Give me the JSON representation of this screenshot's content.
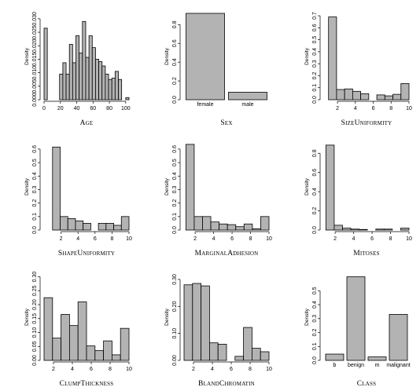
{
  "chart_data": [
    {
      "type": "bar",
      "title": "Age",
      "ylabel": "Density",
      "x_ticks": [
        0,
        20,
        40,
        60,
        80,
        100
      ],
      "y_ticks": [
        "0.000",
        "0.005",
        "0.010",
        "0.015",
        "0.020",
        "0.025",
        "0.030"
      ],
      "xlim": [
        0,
        104
      ],
      "ylim": [
        0,
        0.032
      ],
      "bins": [
        {
          "x0": 0,
          "x1": 4,
          "value": 0.0265
        },
        {
          "x0": 19,
          "x1": 23,
          "value": 0.0095
        },
        {
          "x0": 23,
          "x1": 27,
          "value": 0.0137
        },
        {
          "x0": 27,
          "x1": 31,
          "value": 0.0095
        },
        {
          "x0": 31,
          "x1": 35,
          "value": 0.0205
        },
        {
          "x0": 35,
          "x1": 39,
          "value": 0.0137
        },
        {
          "x0": 39,
          "x1": 43,
          "value": 0.0237
        },
        {
          "x0": 43,
          "x1": 47,
          "value": 0.0173
        },
        {
          "x0": 47,
          "x1": 51,
          "value": 0.029
        },
        {
          "x0": 51,
          "x1": 55,
          "value": 0.0157
        },
        {
          "x0": 55,
          "x1": 59,
          "value": 0.0237
        },
        {
          "x0": 59,
          "x1": 63,
          "value": 0.0193
        },
        {
          "x0": 63,
          "x1": 67,
          "value": 0.015
        },
        {
          "x0": 67,
          "x1": 71,
          "value": 0.0141
        },
        {
          "x0": 71,
          "x1": 75,
          "value": 0.0125
        },
        {
          "x0": 75,
          "x1": 79,
          "value": 0.0095
        },
        {
          "x0": 79,
          "x1": 83,
          "value": 0.0075
        },
        {
          "x0": 83,
          "x1": 87,
          "value": 0.008
        },
        {
          "x0": 87,
          "x1": 91,
          "value": 0.0105
        },
        {
          "x0": 91,
          "x1": 95,
          "value": 0.0075
        },
        {
          "x0": 100,
          "x1": 104,
          "value": 0.0008
        }
      ]
    },
    {
      "type": "bar",
      "title": "Sex",
      "ylabel": "Density",
      "categories": [
        "female",
        "male"
      ],
      "values": [
        0.92,
        0.08
      ],
      "y_ticks": [
        "0.0",
        "0.2",
        "0.4",
        "0.6",
        "0.8"
      ],
      "ylim": [
        0,
        0.92
      ]
    },
    {
      "type": "bar",
      "title": "SizeUniformity",
      "ylabel": "Density",
      "x_ticks": [
        2,
        4,
        6,
        8,
        10
      ],
      "y_ticks": [
        "0.0",
        "0.1",
        "0.2",
        "0.3",
        "0.4",
        "0.5",
        "0.6",
        "0.7"
      ],
      "xlim": [
        0.5,
        10
      ],
      "ylim": [
        0,
        0.72
      ],
      "bins": [
        {
          "x0": 1,
          "x1": 1.9,
          "value": 0.69
        },
        {
          "x0": 1.9,
          "x1": 2.8,
          "value": 0.085
        },
        {
          "x0": 2.8,
          "x1": 3.7,
          "value": 0.09
        },
        {
          "x0": 3.7,
          "x1": 4.6,
          "value": 0.07
        },
        {
          "x0": 4.6,
          "x1": 5.5,
          "value": 0.05
        },
        {
          "x0": 5.5,
          "x1": 6.4,
          "value": 0.0
        },
        {
          "x0": 6.4,
          "x1": 7.3,
          "value": 0.04
        },
        {
          "x0": 7.3,
          "x1": 8.2,
          "value": 0.032
        },
        {
          "x0": 8.2,
          "x1": 9.1,
          "value": 0.045
        },
        {
          "x0": 9.1,
          "x1": 10,
          "value": 0.135
        }
      ]
    },
    {
      "type": "bar",
      "title": "ShapeUniformity",
      "ylabel": "Density",
      "x_ticks": [
        2,
        4,
        6,
        8,
        10
      ],
      "y_ticks": [
        "0.0",
        "0.1",
        "0.2",
        "0.3",
        "0.4",
        "0.5",
        "0.6"
      ],
      "xlim": [
        0,
        10
      ],
      "ylim": [
        0,
        0.64
      ],
      "bins": [
        {
          "x0": 1,
          "x1": 1.9,
          "value": 0.615
        },
        {
          "x0": 1.9,
          "x1": 2.8,
          "value": 0.1
        },
        {
          "x0": 2.8,
          "x1": 3.7,
          "value": 0.085
        },
        {
          "x0": 3.7,
          "x1": 4.6,
          "value": 0.068
        },
        {
          "x0": 4.6,
          "x1": 5.5,
          "value": 0.05
        },
        {
          "x0": 5.5,
          "x1": 6.4,
          "value": 0.0
        },
        {
          "x0": 6.4,
          "x1": 7.3,
          "value": 0.05
        },
        {
          "x0": 7.3,
          "x1": 8.2,
          "value": 0.05
        },
        {
          "x0": 8.2,
          "x1": 9.1,
          "value": 0.035
        },
        {
          "x0": 9.1,
          "x1": 10,
          "value": 0.1
        }
      ]
    },
    {
      "type": "bar",
      "title": "MarginalAdhesion",
      "ylabel": "Density",
      "x_ticks": [
        2,
        4,
        6,
        8,
        10
      ],
      "y_ticks": [
        "0.0",
        "0.1",
        "0.2",
        "0.3",
        "0.4",
        "0.5",
        "0.6"
      ],
      "xlim": [
        0.8,
        10
      ],
      "ylim": [
        0,
        0.64
      ],
      "bins": [
        {
          "x0": 1,
          "x1": 1.9,
          "value": 0.635
        },
        {
          "x0": 1.9,
          "x1": 2.8,
          "value": 0.1
        },
        {
          "x0": 2.8,
          "x1": 3.7,
          "value": 0.1
        },
        {
          "x0": 3.7,
          "x1": 4.6,
          "value": 0.06
        },
        {
          "x0": 4.6,
          "x1": 5.5,
          "value": 0.045
        },
        {
          "x0": 5.5,
          "x1": 6.4,
          "value": 0.04
        },
        {
          "x0": 6.4,
          "x1": 7.3,
          "value": 0.025
        },
        {
          "x0": 7.3,
          "x1": 8.2,
          "value": 0.045
        },
        {
          "x0": 8.2,
          "x1": 9.1,
          "value": 0.01
        },
        {
          "x0": 9.1,
          "x1": 10,
          "value": 0.1
        }
      ]
    },
    {
      "type": "bar",
      "title": "Mitoses",
      "ylabel": "Density",
      "x_ticks": [
        2,
        4,
        6,
        8,
        10
      ],
      "y_ticks": [
        "0.0",
        "0.2",
        "0.4",
        "0.6",
        "0.8"
      ],
      "xlim": [
        0.8,
        10
      ],
      "ylim": [
        0,
        0.9
      ],
      "bins": [
        {
          "x0": 1,
          "x1": 1.9,
          "value": 0.885
        },
        {
          "x0": 1.9,
          "x1": 2.8,
          "value": 0.05
        },
        {
          "x0": 2.8,
          "x1": 3.7,
          "value": 0.02
        },
        {
          "x0": 3.7,
          "x1": 4.6,
          "value": 0.01
        },
        {
          "x0": 4.6,
          "x1": 5.5,
          "value": 0.006
        },
        {
          "x0": 5.5,
          "x1": 6.4,
          "value": 0.0
        },
        {
          "x0": 6.4,
          "x1": 7.3,
          "value": 0.01
        },
        {
          "x0": 7.3,
          "x1": 8.2,
          "value": 0.01
        },
        {
          "x0": 8.2,
          "x1": 9.1,
          "value": 0.0
        },
        {
          "x0": 9.1,
          "x1": 10,
          "value": 0.02
        }
      ]
    },
    {
      "type": "bar",
      "title": "ClumpThickness",
      "ylabel": "Density",
      "x_ticks": [
        2,
        4,
        6,
        8,
        10
      ],
      "y_ticks": [
        "0.00",
        "0.05",
        "0.10",
        "0.15",
        "0.20",
        "0.25",
        "0.30"
      ],
      "xlim": [
        1,
        10
      ],
      "ylim": [
        0,
        0.31
      ],
      "bins": [
        {
          "x0": 1,
          "x1": 1.9,
          "value": 0.225
        },
        {
          "x0": 1.9,
          "x1": 2.8,
          "value": 0.08
        },
        {
          "x0": 2.8,
          "x1": 3.7,
          "value": 0.165
        },
        {
          "x0": 3.7,
          "x1": 4.6,
          "value": 0.125
        },
        {
          "x0": 4.6,
          "x1": 5.5,
          "value": 0.21
        },
        {
          "x0": 5.5,
          "x1": 6.4,
          "value": 0.052
        },
        {
          "x0": 6.4,
          "x1": 7.3,
          "value": 0.035
        },
        {
          "x0": 7.3,
          "x1": 8.2,
          "value": 0.07
        },
        {
          "x0": 8.2,
          "x1": 9.1,
          "value": 0.02
        },
        {
          "x0": 9.1,
          "x1": 10,
          "value": 0.115
        }
      ]
    },
    {
      "type": "bar",
      "title": "BlandChromatin",
      "ylabel": "Density",
      "x_ticks": [
        2,
        4,
        6,
        8,
        10
      ],
      "y_ticks": [
        "0.00",
        "0.10",
        "0.20",
        "0.30"
      ],
      "xlim": [
        1,
        10
      ],
      "ylim": [
        0,
        0.32
      ],
      "bins": [
        {
          "x0": 1,
          "x1": 1.9,
          "value": 0.28
        },
        {
          "x0": 1.9,
          "x1": 2.8,
          "value": 0.285
        },
        {
          "x0": 2.8,
          "x1": 3.7,
          "value": 0.276
        },
        {
          "x0": 3.7,
          "x1": 4.6,
          "value": 0.065
        },
        {
          "x0": 4.6,
          "x1": 5.5,
          "value": 0.06
        },
        {
          "x0": 5.5,
          "x1": 6.4,
          "value": 0.0
        },
        {
          "x0": 6.4,
          "x1": 7.3,
          "value": 0.015
        },
        {
          "x0": 7.3,
          "x1": 8.2,
          "value": 0.122
        },
        {
          "x0": 8.2,
          "x1": 9.1,
          "value": 0.045
        },
        {
          "x0": 9.1,
          "x1": 10,
          "value": 0.032
        }
      ]
    },
    {
      "type": "bar",
      "title": "Class",
      "ylabel": "Density",
      "categories": [
        "b",
        "benign",
        "m",
        "malignant"
      ],
      "values": [
        0.045,
        0.6,
        0.025,
        0.33
      ],
      "y_ticks": [
        "0.0",
        "0.1",
        "0.2",
        "0.3",
        "0.4",
        "0.5"
      ],
      "ylim": [
        0,
        0.62
      ]
    }
  ]
}
